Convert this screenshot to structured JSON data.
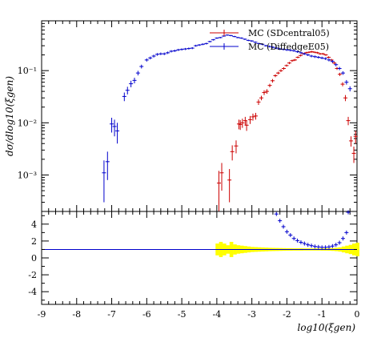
{
  "chart_data": [
    {
      "type": "scatter",
      "panel": "main",
      "title": "",
      "xlabel": "log10(ξgen)",
      "ylabel": "dσ/dlog10(ξgen)",
      "yscale": "log",
      "xlim": [
        -9,
        0
      ],
      "ylim": [
        0.0002,
        0.9
      ],
      "y_ticks": [
        {
          "value": 0.001,
          "label": "10⁻³"
        },
        {
          "value": 0.01,
          "label": "10⁻²"
        },
        {
          "value": 0.1,
          "label": "10⁻¹"
        }
      ],
      "legend_position": "top-right",
      "series": [
        {
          "name": "MC (SDcentral05)",
          "color": "#cc0000",
          "x": [
            -3.94,
            -3.86,
            -3.64,
            -3.56,
            -3.45,
            -3.37,
            -3.33,
            -3.27,
            -3.19,
            -3.15,
            -3.05,
            -2.97,
            -2.89,
            -2.81,
            -2.73,
            -2.65,
            -2.57,
            -2.49,
            -2.41,
            -2.33,
            -2.25,
            -2.17,
            -2.09,
            -2.01,
            -1.93,
            -1.85,
            -1.77,
            -1.69,
            -1.61,
            -1.53,
            -1.45,
            -1.37,
            -1.29,
            -1.21,
            -1.13,
            -1.05,
            -0.97,
            -0.89,
            -0.81,
            -0.73,
            -0.65,
            -0.57,
            -0.49,
            -0.41,
            -0.33,
            -0.25,
            -0.17,
            -0.09,
            -0.04
          ],
          "y": [
            0.0007,
            0.0011,
            0.0008,
            0.0028,
            0.0036,
            0.0095,
            0.0093,
            0.01,
            0.011,
            0.009,
            0.0115,
            0.013,
            0.0135,
            0.025,
            0.03,
            0.038,
            0.04,
            0.052,
            0.064,
            0.08,
            0.09,
            0.1,
            0.11,
            0.125,
            0.14,
            0.155,
            0.16,
            0.18,
            0.195,
            0.21,
            0.22,
            0.225,
            0.23,
            0.225,
            0.22,
            0.21,
            0.21,
            0.2,
            0.18,
            0.16,
            0.14,
            0.11,
            0.085,
            0.055,
            0.03,
            0.011,
            0.0045,
            0.0026,
            0.0055
          ],
          "yerr": [
            0.0005,
            0.0006,
            0.0005,
            0.0009,
            0.001,
            0.002,
            0.002,
            0.002,
            0.002,
            0.002,
            0.002,
            0.002,
            0.002,
            0.003,
            0.003,
            0.004,
            0.004,
            0.004,
            0.005,
            0.005,
            0.005,
            0.006,
            0.006,
            0.006,
            0.007,
            0.007,
            0.007,
            0.008,
            0.008,
            0.008,
            0.009,
            0.009,
            0.009,
            0.009,
            0.009,
            0.009,
            0.009,
            0.008,
            0.008,
            0.008,
            0.007,
            0.007,
            0.006,
            0.005,
            0.004,
            0.002,
            0.001,
            0.0009,
            0.0015
          ]
        },
        {
          "name": "MC (DiffedgeE05)",
          "color": "#0000cc",
          "x": [
            -7.22,
            -7.12,
            -7.0,
            -6.92,
            -6.84,
            -6.64,
            -6.55,
            -6.45,
            -6.35,
            -6.25,
            -6.15,
            -6.0,
            -5.9,
            -5.8,
            -5.7,
            -5.6,
            -5.5,
            -5.4,
            -5.3,
            -5.2,
            -5.1,
            -5.0,
            -4.9,
            -4.8,
            -4.7,
            -4.6,
            -4.5,
            -4.4,
            -4.3,
            -4.2,
            -4.1,
            -4.0,
            -3.9,
            -3.8,
            -3.7,
            -3.6,
            -3.5,
            -3.4,
            -3.3,
            -3.2,
            -3.1,
            -3.0,
            -2.9,
            -2.8,
            -2.7,
            -2.6,
            -2.5,
            -2.4,
            -2.3,
            -2.2,
            -2.1,
            -2.0,
            -1.9,
            -1.8,
            -1.7,
            -1.6,
            -1.5,
            -1.4,
            -1.3,
            -1.2,
            -1.1,
            -1.0,
            -0.9,
            -0.8,
            -0.7,
            -0.6,
            -0.5,
            -0.4,
            -0.3,
            -0.2
          ],
          "y": [
            0.0011,
            0.0018,
            0.0095,
            0.0085,
            0.007,
            0.032,
            0.042,
            0.056,
            0.065,
            0.09,
            0.12,
            0.16,
            0.175,
            0.19,
            0.205,
            0.21,
            0.21,
            0.22,
            0.235,
            0.24,
            0.25,
            0.255,
            0.26,
            0.265,
            0.27,
            0.3,
            0.31,
            0.32,
            0.33,
            0.36,
            0.39,
            0.42,
            0.43,
            0.46,
            0.48,
            0.47,
            0.45,
            0.43,
            0.42,
            0.4,
            0.38,
            0.37,
            0.35,
            0.33,
            0.32,
            0.3,
            0.29,
            0.28,
            0.27,
            0.26,
            0.255,
            0.25,
            0.245,
            0.24,
            0.23,
            0.22,
            0.21,
            0.2,
            0.19,
            0.185,
            0.18,
            0.175,
            0.17,
            0.16,
            0.15,
            0.13,
            0.11,
            0.09,
            0.06,
            0.045
          ],
          "yerr": [
            0.0008,
            0.001,
            0.003,
            0.003,
            0.003,
            0.006,
            0.007,
            0.008,
            0.008,
            0.009,
            0.01,
            0.011,
            0.011,
            0.012,
            0.012,
            0.012,
            0.012,
            0.012,
            0.012,
            0.012,
            0.012,
            0.012,
            0.012,
            0.012,
            0.012,
            0.013,
            0.013,
            0.013,
            0.013,
            0.013,
            0.013,
            0.014,
            0.014,
            0.014,
            0.014,
            0.014,
            0.014,
            0.014,
            0.013,
            0.013,
            0.013,
            0.013,
            0.013,
            0.012,
            0.012,
            0.012,
            0.012,
            0.012,
            0.012,
            0.011,
            0.011,
            0.011,
            0.011,
            0.011,
            0.011,
            0.011,
            0.01,
            0.01,
            0.01,
            0.01,
            0.01,
            0.01,
            0.01,
            0.01,
            0.009,
            0.009,
            0.008,
            0.007,
            0.006,
            0.005
          ]
        }
      ]
    },
    {
      "type": "scatter",
      "panel": "ratio",
      "xlabel": "log10(ξgen)",
      "xlim": [
        -9,
        0
      ],
      "ylim": [
        -5.5,
        5.5
      ],
      "x_ticks": [
        -9,
        -8,
        -7,
        -6,
        -5,
        -4,
        -3,
        -2,
        -1,
        0
      ],
      "y_ticks": [
        -4,
        -2,
        0,
        2,
        4
      ],
      "reference_line": {
        "y": 1,
        "color": "#0000cc"
      },
      "band": {
        "color": "#ffff00",
        "x": [
          -4.0,
          -3.9,
          -3.8,
          -3.7,
          -3.6,
          -3.5,
          -3.4,
          -3.3,
          -3.2,
          -3.1,
          -3.0,
          -2.9,
          -2.8,
          -2.7,
          -2.6,
          -2.5,
          -2.4,
          -2.3,
          -2.2,
          -2.1,
          -2.0,
          -1.9,
          -1.8,
          -1.7,
          -1.6,
          -1.5,
          -1.4,
          -1.3,
          -1.2,
          -1.1,
          -1.0,
          -0.9,
          -0.8,
          -0.7,
          -0.6,
          -0.5,
          -0.4,
          -0.3,
          -0.2,
          -0.1,
          0.0
        ],
        "halfwidth": [
          0.7,
          0.9,
          0.7,
          0.5,
          0.9,
          0.6,
          0.5,
          0.45,
          0.4,
          0.35,
          0.3,
          0.28,
          0.26,
          0.24,
          0.22,
          0.2,
          0.19,
          0.18,
          0.17,
          0.16,
          0.15,
          0.15,
          0.14,
          0.14,
          0.14,
          0.13,
          0.13,
          0.13,
          0.13,
          0.13,
          0.14,
          0.14,
          0.15,
          0.17,
          0.2,
          0.25,
          0.35,
          0.45,
          0.55,
          0.7,
          0.8
        ]
      },
      "series": [
        {
          "name": "",
          "color": "#0000cc",
          "x": [
            -2.3,
            -2.2,
            -2.1,
            -2.0,
            -1.9,
            -1.8,
            -1.7,
            -1.6,
            -1.5,
            -1.4,
            -1.3,
            -1.2,
            -1.1,
            -1.0,
            -0.9,
            -0.8,
            -0.7,
            -0.6,
            -0.5,
            -0.4,
            -0.3,
            -0.25
          ],
          "y": [
            5.2,
            4.4,
            3.7,
            3.1,
            2.7,
            2.3,
            2.05,
            1.85,
            1.7,
            1.55,
            1.45,
            1.35,
            1.3,
            1.25,
            1.25,
            1.3,
            1.4,
            1.55,
            1.8,
            2.3,
            3.0,
            5.4
          ]
        }
      ]
    }
  ]
}
